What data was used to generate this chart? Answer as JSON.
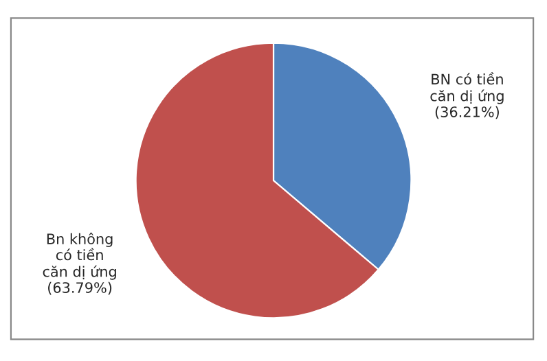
{
  "chart_data": {
    "type": "pie",
    "categories": [
      "BN có tiền căn dị ứng",
      "Bn không có tiền căn dị ứng"
    ],
    "values": [
      36.21,
      63.79
    ],
    "value_labels": [
      "(36.21%)",
      "(63.79%)"
    ],
    "colors": [
      "#4f81bd",
      "#c0504d"
    ]
  }
}
